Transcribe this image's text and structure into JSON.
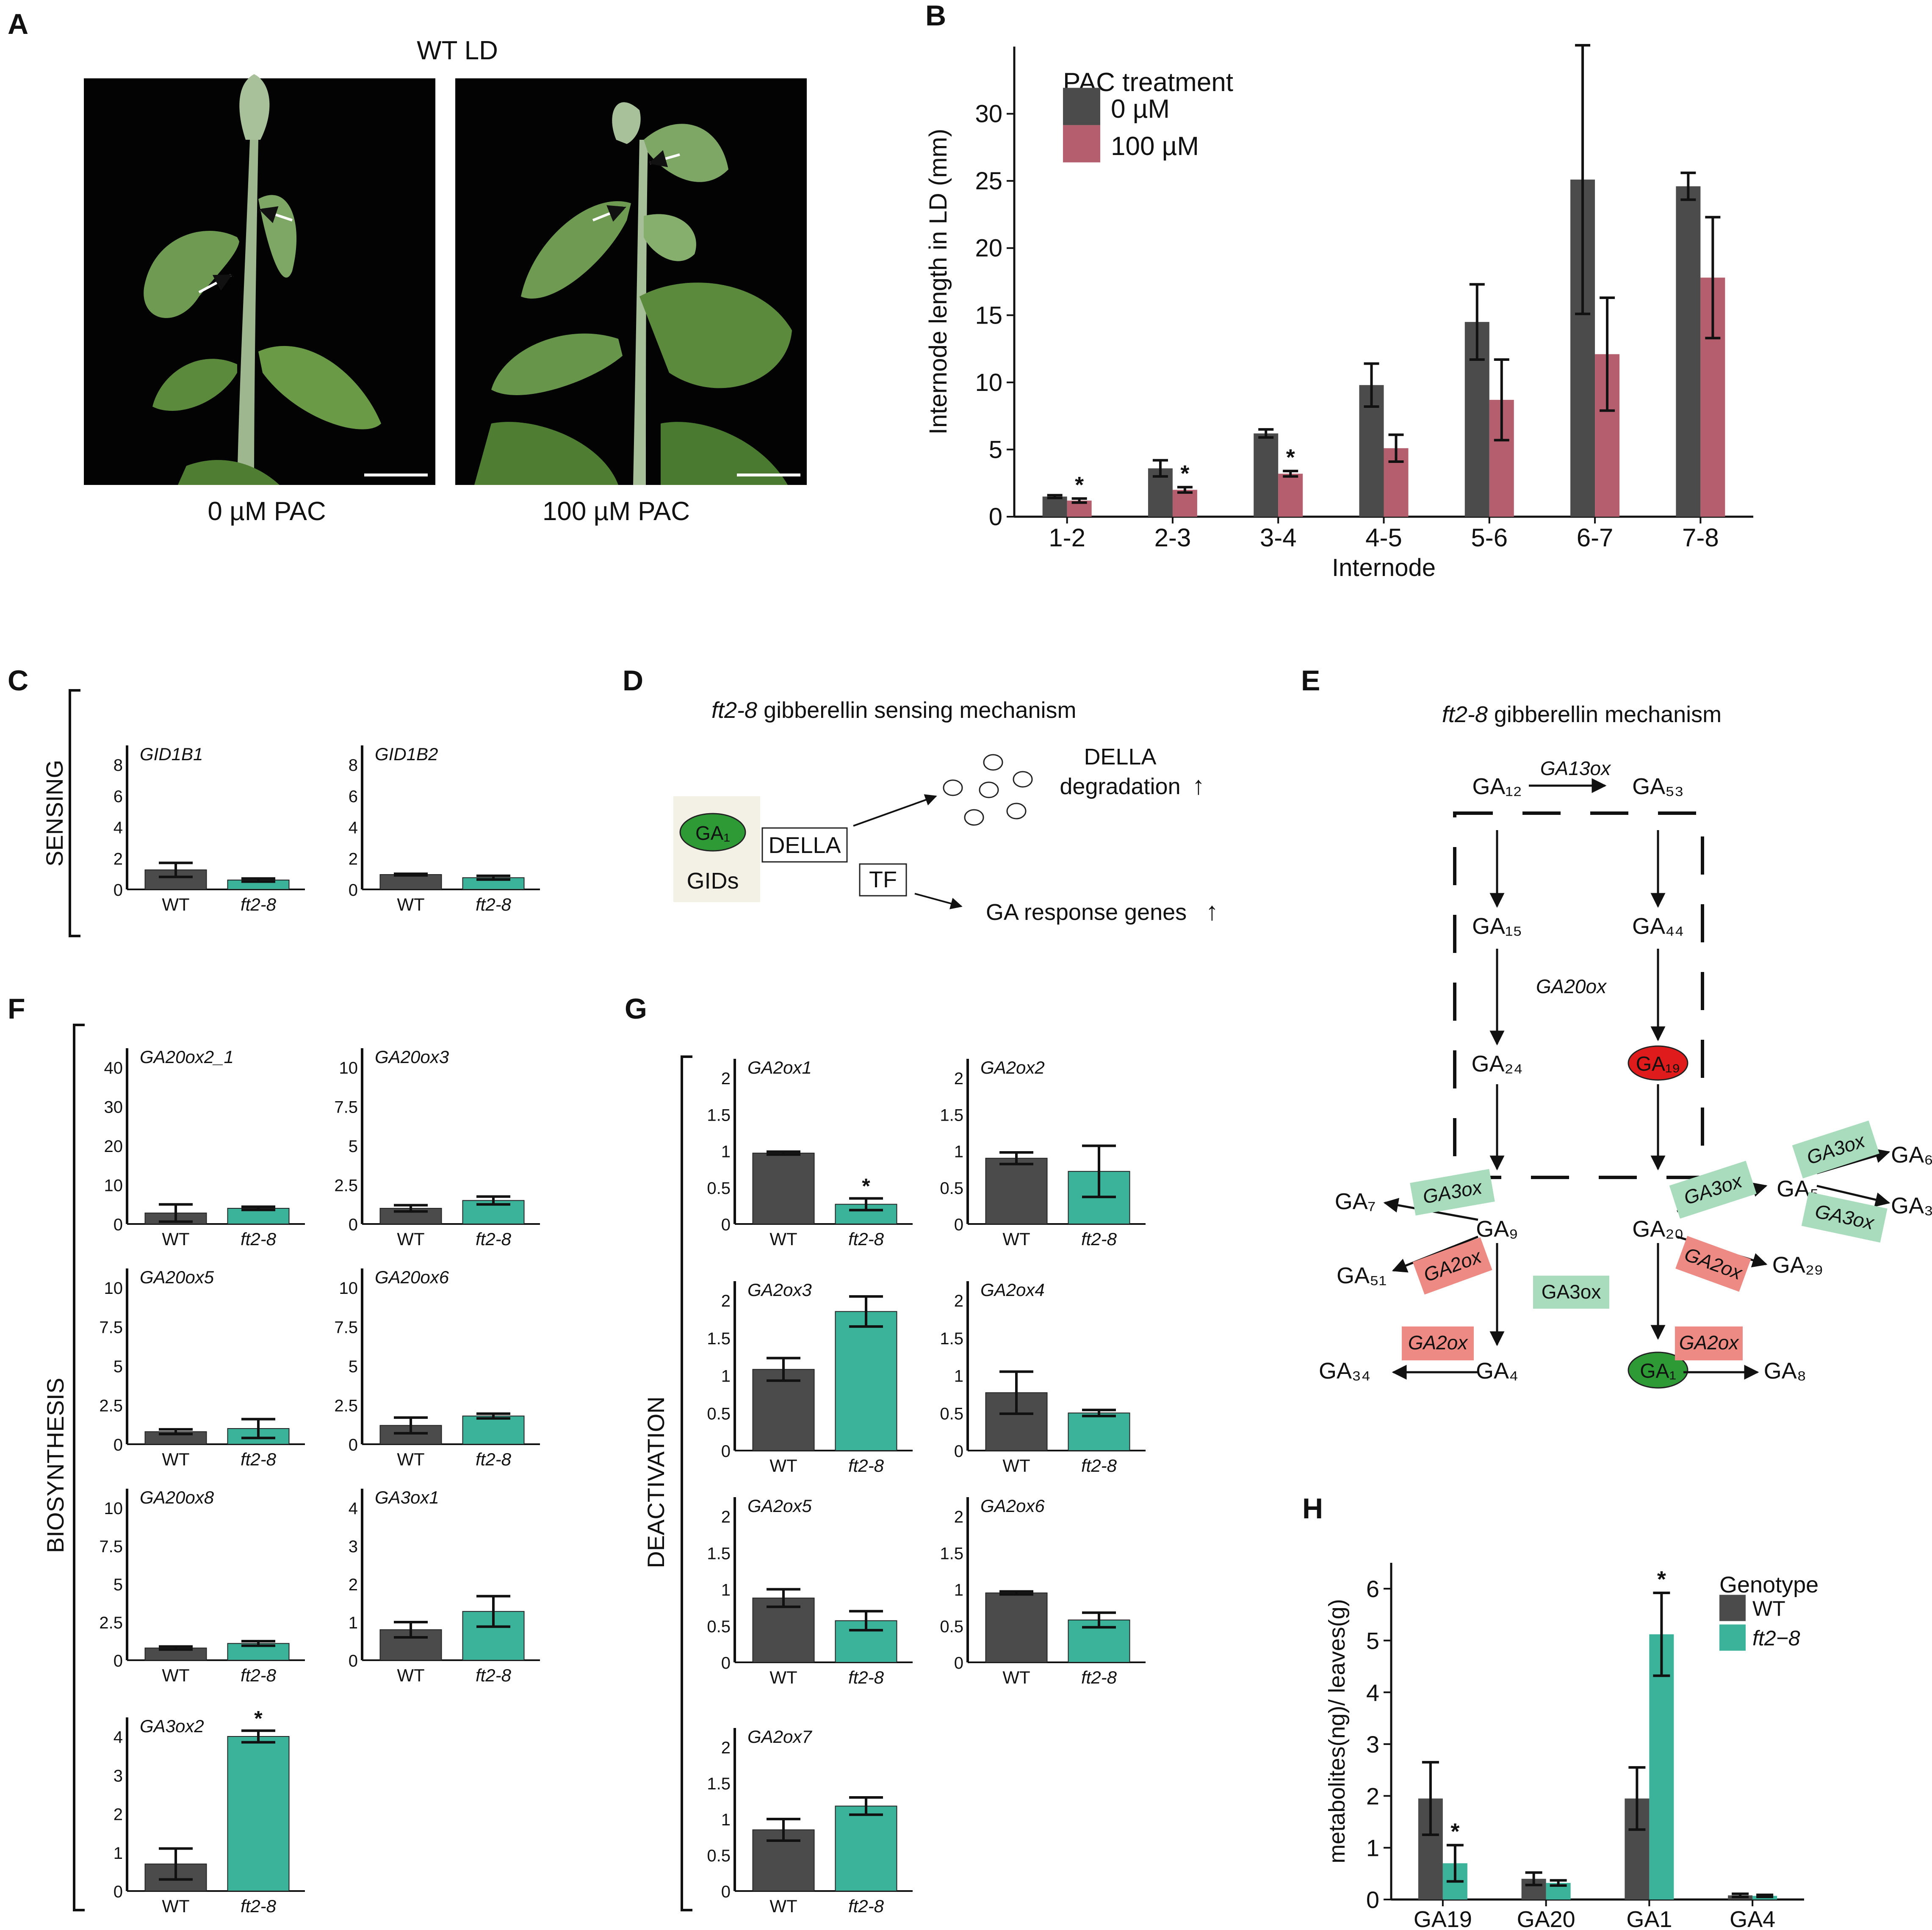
{
  "colors": {
    "wt": "#4b4b4b",
    "ft28": "#3bb39b",
    "pac100": "#b55f6e",
    "ga19": "#e01b1b",
    "ga1": "#2e9a35",
    "ga3ox": "#a8dcbc",
    "ga2ox": "#ee8a84"
  },
  "panel_A": {
    "label": "A",
    "title": "WT LD",
    "left_caption": "0 µM PAC",
    "right_caption": "100 µM PAC"
  },
  "chart_data": [
    {
      "id": "B",
      "label": "B",
      "type": "bar",
      "categories": [
        "1-2",
        "2-3",
        "3-4",
        "4-5",
        "5-6",
        "6-7",
        "7-8"
      ],
      "series": [
        {
          "name": "0  µM",
          "values": [
            1.5,
            3.6,
            6.2,
            9.8,
            14.5,
            25.1,
            24.6
          ],
          "errors": [
            0.1,
            0.6,
            0.3,
            1.6,
            2.8,
            10,
            1.0
          ]
        },
        {
          "name": "100  µM",
          "values": [
            1.2,
            2.0,
            3.2,
            5.1,
            8.7,
            12.1,
            17.8
          ],
          "errors": [
            0.15,
            0.2,
            0.2,
            1.0,
            3.0,
            4.2,
            4.5
          ]
        }
      ],
      "significant": [
        0,
        1,
        2
      ],
      "star": "*",
      "xlabel": "Internode",
      "ylabel": "Internode length in LD (mm)",
      "ylim": [
        0,
        35
      ],
      "yticks": [
        "0",
        "5",
        "10",
        "15",
        "20",
        "25",
        "30"
      ],
      "legend_title": "PAC treatment",
      "legend": "top-left"
    },
    {
      "id": "H",
      "label": "H",
      "type": "bar",
      "categories": [
        "GA19",
        "GA20",
        "GA1",
        "GA4"
      ],
      "series": [
        {
          "name": "WT",
          "values": [
            1.95,
            0.4,
            1.95,
            0.08
          ],
          "errors": [
            0.7,
            0.12,
            0.6,
            0.03
          ]
        },
        {
          "name": "ft2−8",
          "values": [
            0.7,
            0.32,
            5.12,
            0.07
          ],
          "errors": [
            0.35,
            0.05,
            0.8,
            0.02
          ]
        }
      ],
      "significant": [
        0,
        2
      ],
      "star": "*",
      "ylabel": "metabolites(ng)/ leaves(g)",
      "ylim": [
        0,
        6.5
      ],
      "yticks": [
        "0",
        "1",
        "2",
        "3",
        "4",
        "5",
        "6"
      ],
      "legend_title": "Genotype",
      "legend": "top-right"
    }
  ],
  "small_panels": {
    "categories": [
      "WT",
      "ft2-8"
    ],
    "C": {
      "label": "C",
      "group": "SENSING",
      "charts": [
        {
          "gene": "GID1B1",
          "yticks": [
            "0",
            "2",
            "4",
            "6",
            "8"
          ],
          "ymax": 8,
          "values": [
            1.25,
            0.6
          ],
          "errors": [
            0.45,
            0.1
          ],
          "star": null
        },
        {
          "gene": "GID1B2",
          "yticks": [
            "0",
            "2",
            "4",
            "6",
            "8"
          ],
          "ymax": 8,
          "values": [
            0.95,
            0.75
          ],
          "errors": [
            0.05,
            0.12
          ],
          "star": null
        }
      ]
    },
    "F": {
      "label": "F",
      "group": "BIOSYNTHESIS",
      "charts": [
        {
          "gene": "GA20ox2_1",
          "yticks": [
            "0",
            "10",
            "20",
            "30",
            "40"
          ],
          "ymax": 40,
          "values": [
            2.8,
            4.0
          ],
          "errors": [
            2.2,
            0.4
          ],
          "star": null
        },
        {
          "gene": "GA20ox3",
          "yticks": [
            "0",
            "2.5",
            "5",
            "7.5",
            "10"
          ],
          "ymax": 10,
          "values": [
            1.0,
            1.5
          ],
          "errors": [
            0.2,
            0.25
          ],
          "star": null
        },
        {
          "gene": "GA20ox5",
          "yticks": [
            "0",
            "2.5",
            "5",
            "7.5",
            "10"
          ],
          "ymax": 10,
          "values": [
            0.8,
            1.0
          ],
          "errors": [
            0.15,
            0.6
          ],
          "star": null
        },
        {
          "gene": "GA20ox6",
          "yticks": [
            "0",
            "2.5",
            "5",
            "7.5",
            "10"
          ],
          "ymax": 10,
          "values": [
            1.2,
            1.8
          ],
          "errors": [
            0.5,
            0.15
          ],
          "star": null
        },
        {
          "gene": "GA20ox8",
          "yticks": [
            "0",
            "2.5",
            "5",
            "7.5",
            "10"
          ],
          "ymax": 10,
          "values": [
            0.8,
            1.1
          ],
          "errors": [
            0.1,
            0.15
          ],
          "star": null
        },
        {
          "gene": "GA3ox1",
          "yticks": [
            "0",
            "1",
            "2",
            "3",
            "4"
          ],
          "ymax": 4,
          "values": [
            0.8,
            1.28
          ],
          "errors": [
            0.2,
            0.4
          ],
          "star": null
        },
        {
          "gene": "GA3ox2",
          "yticks": [
            "0",
            "1",
            "2",
            "3",
            "4"
          ],
          "ymax": 4,
          "values": [
            0.7,
            4.0
          ],
          "errors": [
            0.4,
            0.15
          ],
          "star": "*"
        }
      ]
    },
    "G": {
      "label": "G",
      "group": "DEACTIVATION",
      "charts": [
        {
          "gene": "GA2ox1",
          "yticks": [
            "0",
            "0.5",
            "1",
            "1.5",
            "2"
          ],
          "ymax": 2,
          "values": [
            0.97,
            0.27
          ],
          "errors": [
            0.02,
            0.08
          ],
          "star": "*"
        },
        {
          "gene": "GA2ox2",
          "yticks": [
            "0",
            "0.5",
            "1",
            "1.5",
            "2"
          ],
          "ymax": 2,
          "values": [
            0.9,
            0.72
          ],
          "errors": [
            0.08,
            0.35
          ],
          "star": null
        },
        {
          "gene": "GA2ox3",
          "yticks": [
            "0",
            "0.5",
            "1",
            "1.5",
            "2"
          ],
          "ymax": 2,
          "values": [
            1.08,
            1.85
          ],
          "errors": [
            0.15,
            0.2
          ],
          "star": null
        },
        {
          "gene": "GA2ox4",
          "yticks": [
            "0",
            "0.5",
            "1",
            "1.5",
            "2"
          ],
          "ymax": 2,
          "values": [
            0.77,
            0.5
          ],
          "errors": [
            0.28,
            0.04
          ],
          "star": null
        },
        {
          "gene": "GA2ox5",
          "yticks": [
            "0",
            "0.5",
            "1",
            "1.5",
            "2"
          ],
          "ymax": 2,
          "values": [
            0.88,
            0.57
          ],
          "errors": [
            0.12,
            0.13
          ],
          "star": null
        },
        {
          "gene": "GA2ox6",
          "yticks": [
            "0",
            "0.5",
            "1",
            "1.5",
            "2"
          ],
          "ymax": 2,
          "values": [
            0.95,
            0.58
          ],
          "errors": [
            0.02,
            0.1
          ],
          "star": null
        },
        {
          "gene": "GA2ox7",
          "yticks": [
            "0",
            "0.5",
            "1",
            "1.5",
            "2"
          ],
          "ymax": 2,
          "values": [
            0.85,
            1.18
          ],
          "errors": [
            0.15,
            0.12
          ],
          "star": null
        }
      ]
    }
  },
  "panel_D": {
    "label": "D",
    "title_italic": "ft2-8",
    "title_rest": " gibberellin sensing mechanism",
    "ga": "GA₁",
    "gids": "GIDs",
    "della": "DELLA",
    "tf": "TF",
    "della_degradation_1": "DELLA",
    "della_degradation_2": "degradation",
    "response": "GA response genes",
    "up_arrow": "↑"
  },
  "panel_E": {
    "label": "E",
    "title_italic": "ft2-8",
    "title_rest": " gibberellin mechanism",
    "nodes": {
      "ga12": "GA₁₂",
      "ga53": "GA₅₃",
      "ga15": "GA₁₅",
      "ga44": "GA₄₄",
      "ga24": "GA₂₄",
      "ga19": "GA₁₉",
      "ga9": "GA₉",
      "ga20": "GA₂₀",
      "ga7": "GA₇",
      "ga51": "GA₅₁",
      "ga34": "GA₃₄",
      "ga4": "GA₄",
      "ga1": "GA₁",
      "ga8": "GA₈",
      "ga29": "GA₂₉",
      "ga5": "GA₅",
      "ga6": "GA₆",
      "ga3": "GA₃"
    },
    "enzymes": {
      "ga13ox": "GA13ox",
      "ga20ox": "GA20ox",
      "ga3ox": "GA3ox",
      "ga2ox": "GA2ox"
    }
  }
}
